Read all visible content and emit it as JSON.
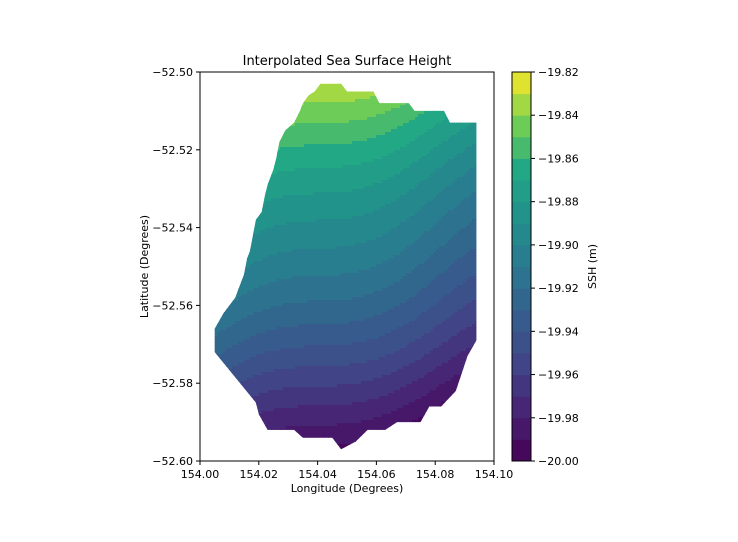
{
  "chart_data": {
    "type": "contourf",
    "title": "Interpolated Sea Surface Height",
    "xlabel": "Longitude (Degrees)",
    "ylabel": "Latitude (Degrees)",
    "xlim": [
      154.0,
      154.1
    ],
    "ylim": [
      -52.6,
      -52.5
    ],
    "x_ticks": [
      154.0,
      154.02,
      154.04,
      154.06,
      154.08,
      154.1
    ],
    "x_tick_labels": [
      "154.00",
      "154.02",
      "154.04",
      "154.06",
      "154.08",
      "154.10"
    ],
    "y_ticks": [
      -52.5,
      -52.52,
      -52.54,
      -52.56,
      -52.58,
      -52.6
    ],
    "y_tick_labels": [
      "−52.50",
      "−52.52",
      "−52.54",
      "−52.56",
      "−52.58",
      "−52.60"
    ],
    "colorbar": {
      "label": "SSH (m)",
      "range": [
        -20.0,
        -19.82
      ],
      "ticks": [
        -20.0,
        -19.98,
        -19.96,
        -19.94,
        -19.92,
        -19.9,
        -19.88,
        -19.86,
        -19.84,
        -19.82
      ],
      "tick_labels": [
        "−20.00",
        "−19.98",
        "−19.96",
        "−19.94",
        "−19.92",
        "−19.90",
        "−19.88",
        "−19.86",
        "−19.84",
        "−19.82"
      ],
      "colormap": "viridis",
      "levels": 18
    },
    "field": {
      "description": "SSH increases toward the north-west and decreases toward the south-east",
      "max_corner": [
        154.042,
        -52.503
      ],
      "min_corner": [
        154.085,
        -52.588
      ],
      "value_at_max": -19.83,
      "value_at_min": -19.995
    },
    "region_polygon": [
      [
        154.044,
        -52.503
      ],
      [
        154.048,
        -52.503
      ],
      [
        154.05,
        -52.505
      ],
      [
        154.059,
        -52.505
      ],
      [
        154.061,
        -52.508
      ],
      [
        154.071,
        -52.508
      ],
      [
        154.073,
        -52.51
      ],
      [
        154.083,
        -52.51
      ],
      [
        154.085,
        -52.513
      ],
      [
        154.094,
        -52.513
      ],
      [
        154.094,
        -52.569
      ],
      [
        154.091,
        -52.573
      ],
      [
        154.087,
        -52.582
      ],
      [
        154.082,
        -52.586
      ],
      [
        154.078,
        -52.586
      ],
      [
        154.075,
        -52.59
      ],
      [
        154.067,
        -52.59
      ],
      [
        154.063,
        -52.592
      ],
      [
        154.057,
        -52.592
      ],
      [
        154.053,
        -52.595
      ],
      [
        154.048,
        -52.597
      ],
      [
        154.045,
        -52.594
      ],
      [
        154.035,
        -52.594
      ],
      [
        154.032,
        -52.592
      ],
      [
        154.023,
        -52.592
      ],
      [
        154.02,
        -52.588
      ],
      [
        154.019,
        -52.585
      ],
      [
        154.005,
        -52.572
      ],
      [
        154.005,
        -52.566
      ],
      [
        154.008,
        -52.562
      ],
      [
        154.012,
        -52.558
      ],
      [
        154.013,
        -52.556
      ],
      [
        154.015,
        -52.552
      ],
      [
        154.016,
        -52.548
      ],
      [
        154.017,
        -52.546
      ],
      [
        154.018,
        -52.542
      ],
      [
        154.019,
        -52.538
      ],
      [
        154.021,
        -52.536
      ],
      [
        154.022,
        -52.532
      ],
      [
        154.023,
        -52.529
      ],
      [
        154.025,
        -52.525
      ],
      [
        154.026,
        -52.522
      ],
      [
        154.027,
        -52.518
      ],
      [
        154.029,
        -52.515
      ],
      [
        154.032,
        -52.513
      ],
      [
        154.034,
        -52.51
      ],
      [
        154.035,
        -52.508
      ],
      [
        154.037,
        -52.506
      ],
      [
        154.039,
        -52.505
      ],
      [
        154.041,
        -52.503
      ]
    ]
  }
}
